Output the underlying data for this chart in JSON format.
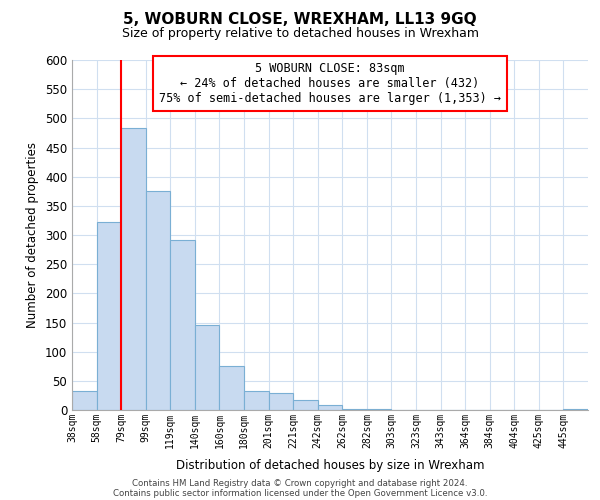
{
  "title1": "5, WOBURN CLOSE, WREXHAM, LL13 9GQ",
  "title2": "Size of property relative to detached houses in Wrexham",
  "xlabel": "Distribution of detached houses by size in Wrexham",
  "ylabel": "Number of detached properties",
  "bar_labels": [
    "38sqm",
    "58sqm",
    "79sqm",
    "99sqm",
    "119sqm",
    "140sqm",
    "160sqm",
    "180sqm",
    "201sqm",
    "221sqm",
    "242sqm",
    "262sqm",
    "282sqm",
    "303sqm",
    "323sqm",
    "343sqm",
    "364sqm",
    "384sqm",
    "404sqm",
    "425sqm",
    "445sqm"
  ],
  "bar_values": [
    32,
    323,
    484,
    375,
    292,
    145,
    75,
    32,
    29,
    17,
    8,
    2,
    1,
    0,
    0,
    0,
    0,
    0,
    0,
    0,
    2
  ],
  "bar_color": "#c8daf0",
  "bar_edge_color": "#7aafd4",
  "grid_color": "#d0dff0",
  "red_line_x": 2,
  "annotation_text_line1": "5 WOBURN CLOSE: 83sqm",
  "annotation_text_line2": "← 24% of detached houses are smaller (432)",
  "annotation_text_line3": "75% of semi-detached houses are larger (1,353) →",
  "ylim": [
    0,
    600
  ],
  "yticks": [
    0,
    50,
    100,
    150,
    200,
    250,
    300,
    350,
    400,
    450,
    500,
    550,
    600
  ],
  "footer1": "Contains HM Land Registry data © Crown copyright and database right 2024.",
  "footer2": "Contains public sector information licensed under the Open Government Licence v3.0.",
  "bg_color": "#ffffff",
  "title1_fontsize": 11,
  "title2_fontsize": 9
}
